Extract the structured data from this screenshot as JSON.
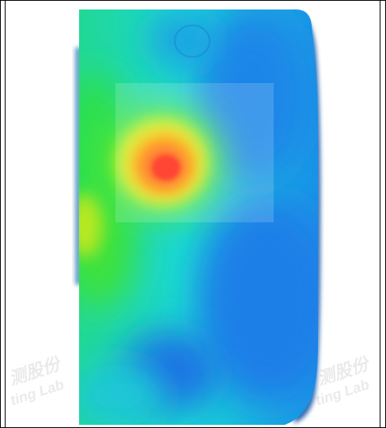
{
  "watermarks": [
    {
      "top": "测股份",
      "bottom": "ting Lab"
    },
    {
      "top": "测股份",
      "bottom": "ting Lab"
    }
  ],
  "colors": {
    "background": "#ffffff",
    "cool": "#1f7fe6",
    "mid": "#19e0dc",
    "warm": "#ffd700",
    "hot": "#ff2a10"
  }
}
